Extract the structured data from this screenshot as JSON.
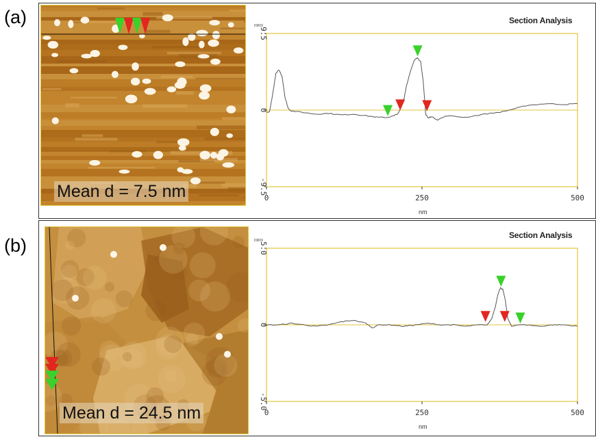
{
  "panels": [
    {
      "label": "(a)",
      "mean_label": "Mean d = 7.5 nm",
      "section_title": "Section Analysis",
      "chart_data": {
        "type": "line",
        "title": "Section Analysis",
        "xlabel": "nm",
        "ylabel": "nm",
        "xlim": [
          0,
          500
        ],
        "ylim": [
          -9.5,
          9.5
        ],
        "x_ticks": [
          "0",
          "250",
          "500"
        ],
        "y_ticks": [
          "9.5",
          "0",
          "-9.5"
        ],
        "grid": false,
        "series": [
          {
            "x": [
              0,
              5,
              10,
              15,
              20,
              25,
              30,
              35,
              40,
              60,
              80,
              100,
              120,
              140,
              160,
              180,
              195,
              205,
              212,
              220,
              225,
              232,
              238,
              243,
              248,
              252,
              256,
              260,
              265,
              275,
              290,
              320,
              350,
              380,
              400,
              420,
              450,
              480,
              500
            ],
            "y": [
              -0.3,
              -0.2,
              2.0,
              4.5,
              5.0,
              4.2,
              1.5,
              0.2,
              -0.1,
              -0.3,
              -0.5,
              -0.4,
              -0.6,
              -0.5,
              -0.7,
              -0.9,
              -0.9,
              -0.7,
              -0.4,
              1.0,
              3.0,
              5.0,
              6.2,
              6.5,
              6.0,
              3.5,
              -0.5,
              -1.0,
              -0.8,
              -1.2,
              -0.7,
              -0.9,
              -0.5,
              -0.2,
              0.2,
              0.6,
              0.8,
              0.7,
              0.8
            ]
          }
        ],
        "markers": [
          {
            "color": "green",
            "x": 195,
            "y": -0.9
          },
          {
            "color": "red",
            "x": 215,
            "y": -0.2
          },
          {
            "color": "green",
            "x": 243,
            "y": 6.5
          },
          {
            "color": "red",
            "x": 258,
            "y": -0.3
          }
        ]
      }
    },
    {
      "label": "(b)",
      "mean_label": "Mean d = 24.5 nm",
      "section_title": "Section Analysis",
      "chart_data": {
        "type": "line",
        "title": "Section Analysis",
        "xlabel": "nm",
        "ylabel": "nm",
        "xlim": [
          0,
          500
        ],
        "ylim": [
          -5.0,
          5.0
        ],
        "x_ticks": [
          "0",
          "250",
          "500"
        ],
        "y_ticks": [
          "5.0",
          "0",
          "-5.0"
        ],
        "grid": false,
        "series": [
          {
            "x": [
              0,
              20,
              40,
              60,
              80,
              100,
              120,
              140,
              160,
              170,
              180,
              200,
              220,
              240,
              260,
              280,
              300,
              320,
              340,
              355,
              362,
              368,
              372,
              376,
              380,
              384,
              388,
              394,
              402,
              420,
              440,
              460,
              480,
              500
            ],
            "y": [
              0.0,
              0.0,
              0.1,
              0.0,
              -0.1,
              0.0,
              0.2,
              0.3,
              0.1,
              -0.2,
              0.0,
              0.0,
              -0.1,
              0.0,
              0.1,
              0.0,
              0.0,
              -0.1,
              0.0,
              0.0,
              0.4,
              1.2,
              2.0,
              2.4,
              2.3,
              1.6,
              0.4,
              -0.1,
              0.0,
              0.0,
              -0.1,
              0.0,
              0.0,
              -0.1
            ]
          }
        ],
        "markers": [
          {
            "color": "red",
            "x": 352,
            "y": 0.1
          },
          {
            "color": "green",
            "x": 377,
            "y": 2.4
          },
          {
            "color": "red",
            "x": 383,
            "y": 0.1
          },
          {
            "color": "green",
            "x": 408,
            "y": 0.0
          }
        ]
      }
    }
  ],
  "colors": {
    "frame": "#e6c63b",
    "trace": "#555555",
    "marker_green": "#39d12a",
    "marker_red": "#e2271f",
    "afm_a_base": "#b8761f",
    "afm_b_base": "#c48f3e"
  }
}
